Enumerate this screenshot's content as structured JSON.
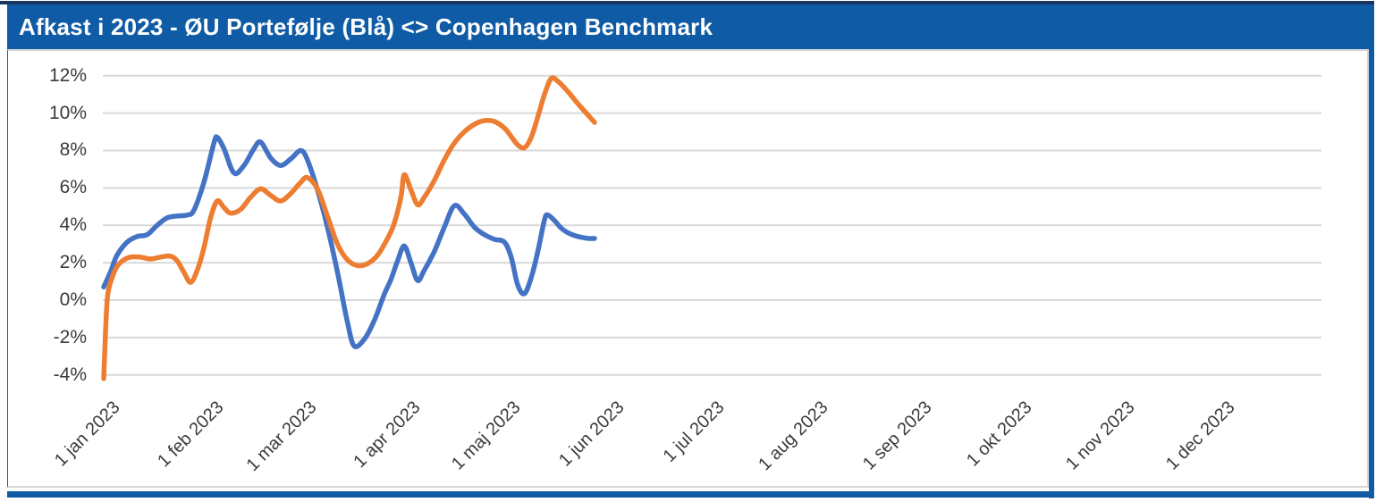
{
  "header": {
    "title": "Afkast i 2023 - ØU Portefølje (Blå) <> Copenhagen Benchmark"
  },
  "colors": {
    "header_bg": "#0F5BA6",
    "frame_accent": "#0F5BA6",
    "top_strip": "#17375E",
    "gridline": "#D9D9D9",
    "axis_text": "#3b3b3b",
    "portfolio_line": "#4472C4",
    "benchmark_line": "#ED7D31"
  },
  "chart_data": {
    "type": "line",
    "title": "Afkast i 2023 - ØU Portefølje (Blå) <> Copenhagen Benchmark",
    "xlabel": "",
    "ylabel": "",
    "ylim": [
      -4,
      12
    ],
    "grid": true,
    "legend_position": "none",
    "x_unit": "days since 1 jan 2023",
    "y_ticks": [
      {
        "label": "12%",
        "value": 12
      },
      {
        "label": "10%",
        "value": 10
      },
      {
        "label": "8%",
        "value": 8
      },
      {
        "label": "6%",
        "value": 6
      },
      {
        "label": "4%",
        "value": 4
      },
      {
        "label": "2%",
        "value": 2
      },
      {
        "label": "0%",
        "value": 0
      },
      {
        "label": "-2%",
        "value": -2
      },
      {
        "label": "-4%",
        "value": -4
      }
    ],
    "x_ticks": [
      {
        "label": "1 jan 2023",
        "day": 0
      },
      {
        "label": "1 feb 2023",
        "day": 31
      },
      {
        "label": "1 mar 2023",
        "day": 59
      },
      {
        "label": "1 apr 2023",
        "day": 90
      },
      {
        "label": "1 maj 2023",
        "day": 120
      },
      {
        "label": "1 jun 2023",
        "day": 151
      },
      {
        "label": "1 jul 2023",
        "day": 181
      },
      {
        "label": "1 aug 2023",
        "day": 212
      },
      {
        "label": "1 sep 2023",
        "day": 243
      },
      {
        "label": "1 okt 2023",
        "day": 273
      },
      {
        "label": "1 nov 2023",
        "day": 304
      },
      {
        "label": "1 dec 2023",
        "day": 334
      }
    ],
    "series": [
      {
        "name": "ØU Portefølje",
        "color": "#4472C4",
        "points": [
          [
            0,
            0.7
          ],
          [
            2,
            1.5
          ],
          [
            4,
            2.4
          ],
          [
            7,
            3.1
          ],
          [
            10,
            3.4
          ],
          [
            13,
            3.5
          ],
          [
            16,
            4.0
          ],
          [
            19,
            4.4
          ],
          [
            22,
            4.5
          ],
          [
            25,
            4.55
          ],
          [
            27,
            4.8
          ],
          [
            30,
            6.3
          ],
          [
            33,
            8.4
          ],
          [
            34,
            8.7
          ],
          [
            36,
            8.1
          ],
          [
            39,
            6.8
          ],
          [
            42,
            7.2
          ],
          [
            45,
            8.1
          ],
          [
            47,
            8.45
          ],
          [
            50,
            7.6
          ],
          [
            53,
            7.2
          ],
          [
            56,
            7.55
          ],
          [
            59,
            8.0
          ],
          [
            61,
            7.5
          ],
          [
            64,
            5.9
          ],
          [
            67,
            3.9
          ],
          [
            70,
            1.5
          ],
          [
            73,
            -1.2
          ],
          [
            75,
            -2.45
          ],
          [
            78,
            -2.1
          ],
          [
            81,
            -1.1
          ],
          [
            84,
            0.3
          ],
          [
            86,
            1.1
          ],
          [
            88,
            2.1
          ],
          [
            90,
            2.9
          ],
          [
            92,
            2.0
          ],
          [
            94,
            1.05
          ],
          [
            96,
            1.6
          ],
          [
            99,
            2.6
          ],
          [
            102,
            3.9
          ],
          [
            105,
            5.05
          ],
          [
            108,
            4.6
          ],
          [
            111,
            3.9
          ],
          [
            114,
            3.5
          ],
          [
            117,
            3.25
          ],
          [
            120,
            3.1
          ],
          [
            122,
            2.3
          ],
          [
            124,
            0.8
          ],
          [
            126,
            0.35
          ],
          [
            128,
            1.2
          ],
          [
            130,
            2.6
          ],
          [
            132,
            4.3
          ],
          [
            133,
            4.55
          ],
          [
            135,
            4.25
          ],
          [
            137,
            3.85
          ],
          [
            139,
            3.6
          ],
          [
            142,
            3.4
          ],
          [
            145,
            3.3
          ],
          [
            147,
            3.3
          ]
        ]
      },
      {
        "name": "Copenhagen Benchmark",
        "color": "#ED7D31",
        "points": [
          [
            0,
            -4.2
          ],
          [
            0.6,
            -1.5
          ],
          [
            1.2,
            0.3
          ],
          [
            2.5,
            1.2
          ],
          [
            4,
            1.8
          ],
          [
            6,
            2.15
          ],
          [
            8,
            2.3
          ],
          [
            11,
            2.3
          ],
          [
            14,
            2.2
          ],
          [
            17,
            2.3
          ],
          [
            20,
            2.35
          ],
          [
            22,
            2.1
          ],
          [
            24,
            1.5
          ],
          [
            26,
            0.95
          ],
          [
            28,
            1.6
          ],
          [
            30,
            2.8
          ],
          [
            32,
            4.4
          ],
          [
            34,
            5.3
          ],
          [
            36,
            4.95
          ],
          [
            38,
            4.65
          ],
          [
            41,
            4.85
          ],
          [
            44,
            5.5
          ],
          [
            47,
            5.95
          ],
          [
            50,
            5.6
          ],
          [
            53,
            5.3
          ],
          [
            56,
            5.7
          ],
          [
            59,
            6.3
          ],
          [
            61,
            6.55
          ],
          [
            64,
            5.95
          ],
          [
            67,
            4.5
          ],
          [
            70,
            3.0
          ],
          [
            73,
            2.15
          ],
          [
            76,
            1.85
          ],
          [
            79,
            1.95
          ],
          [
            82,
            2.4
          ],
          [
            85,
            3.3
          ],
          [
            87,
            4.1
          ],
          [
            89,
            5.5
          ],
          [
            90,
            6.7
          ],
          [
            92,
            5.9
          ],
          [
            94,
            5.1
          ],
          [
            96,
            5.5
          ],
          [
            99,
            6.4
          ],
          [
            102,
            7.5
          ],
          [
            105,
            8.4
          ],
          [
            108,
            9.0
          ],
          [
            111,
            9.4
          ],
          [
            114,
            9.6
          ],
          [
            117,
            9.55
          ],
          [
            120,
            9.2
          ],
          [
            122,
            8.75
          ],
          [
            124,
            8.3
          ],
          [
            126,
            8.15
          ],
          [
            128,
            8.7
          ],
          [
            130,
            9.8
          ],
          [
            132,
            11.0
          ],
          [
            134,
            11.85
          ],
          [
            136,
            11.7
          ],
          [
            139,
            11.15
          ],
          [
            142,
            10.5
          ],
          [
            145,
            9.9
          ],
          [
            147,
            9.5
          ]
        ]
      }
    ]
  }
}
